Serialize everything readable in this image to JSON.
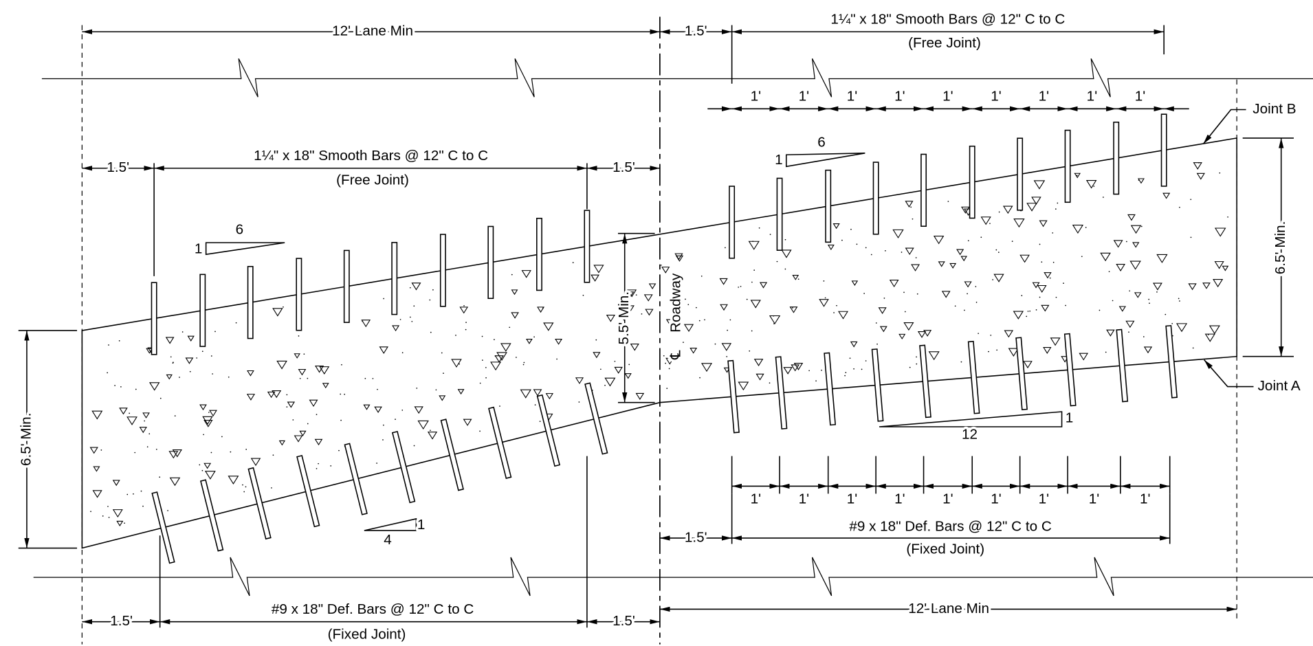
{
  "top_left": {
    "edge_left": "1.5'",
    "bars": "1¼\" x 18\" Smooth Bars @  12\" C  to  C",
    "joint": "(Free  Joint)",
    "edge_right": "1.5'",
    "lane": "12' Lane Min",
    "slope_rise": "1",
    "slope_run": "6"
  },
  "top_right": {
    "edge": "1.5'",
    "bars": "1¼\" x 18\" Smooth Bars @  12\" C  to  C",
    "joint": "(Free  Joint)",
    "spacings": [
      "1'",
      "1'",
      "1'",
      "1'",
      "1'",
      "1'",
      "1'",
      "1'",
      "1'"
    ],
    "slope_rise": "1",
    "slope_run": "6"
  },
  "labels": {
    "joint_b": "Joint B",
    "joint_a": "Joint A",
    "right_depth": "6.5' Min.",
    "left_depth": "6.5' Min.",
    "center_depth": "5.5' Min.",
    "centerline_symbol": "℄",
    "centerline": "Roadway"
  },
  "bottom_left": {
    "edge_left": "1.5'",
    "bars": "#9  x  18\" Def. Bars @  12\" C  to  C",
    "joint": "(Fixed  Joint)",
    "edge_right": "1.5'",
    "slope_rise": "1",
    "slope_run": "4"
  },
  "bottom_right": {
    "edge": "1.5'",
    "bars": "#9  x  18\" Def. Bars @  12\" C  to  C",
    "joint": "(Fixed  Joint)",
    "spacings": [
      "1'",
      "1'",
      "1'",
      "1'",
      "1'",
      "1'",
      "1'",
      "1'",
      "1'"
    ],
    "lane": "12' Lane Min",
    "slope_rise": "1",
    "slope_run": "12"
  }
}
